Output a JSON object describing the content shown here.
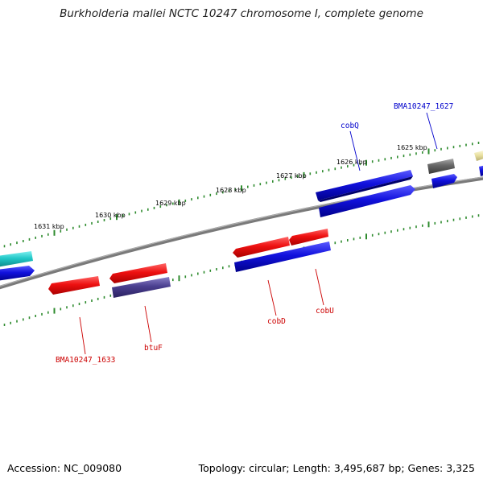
{
  "title": "Burkholderia mallei NCTC 10247 chromosome I, complete genome",
  "footer": {
    "accession": "Accession: NC_009080",
    "summary": "Topology: circular; Length: 3,495,687 bp; Genes: 3,325"
  },
  "ticks": [
    {
      "label": "1631 kbp"
    },
    {
      "label": "1630 kbp"
    },
    {
      "label": "1629 kbp"
    },
    {
      "label": "1628 kbp"
    },
    {
      "label": "1627 kbp"
    },
    {
      "label": "1626 kbp"
    },
    {
      "label": "1625 kbp"
    }
  ],
  "gene_labels": [
    {
      "text": "BMA10247_1627",
      "color": "#0000cc"
    },
    {
      "text": "cobQ",
      "color": "#0000cc"
    },
    {
      "text": "cobD",
      "color": "#cc0000"
    },
    {
      "text": "cobU",
      "color": "#cc0000"
    },
    {
      "text": "btuF",
      "color": "#cc0000"
    },
    {
      "text": "BMA10247_1633",
      "color": "#cc0000"
    }
  ],
  "colors": {
    "backbone": "#808080",
    "tick": "#2e8b2e",
    "forward_cds": "#ee1111",
    "reverse_cds": "#1111dd",
    "other_a": "#20c8c8",
    "other_b": "#4a3f8f",
    "other_c": "#666666",
    "other_d": "#e8e0a0"
  }
}
